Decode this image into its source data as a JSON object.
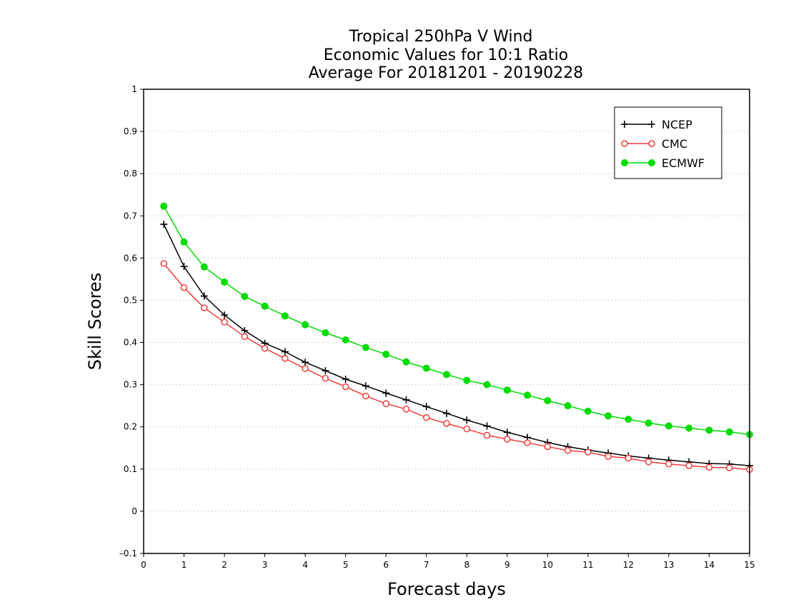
{
  "chart_data": {
    "type": "line",
    "title": [
      "Tropical 250hPa V Wind",
      "Economic Values for 10:1 Ratio",
      "Average For 20181201 - 20190228"
    ],
    "xlabel": "Forecast days",
    "ylabel": "Skill Scores",
    "xlim": [
      0,
      15
    ],
    "ylim": [
      -0.1,
      1
    ],
    "xticks": [
      0,
      1,
      2,
      3,
      4,
      5,
      6,
      7,
      8,
      9,
      10,
      11,
      12,
      13,
      14,
      15
    ],
    "yticks": [
      -0.1,
      0,
      0.1,
      0.2,
      0.3,
      0.4,
      0.5,
      0.6,
      0.7,
      0.8,
      0.9,
      1
    ],
    "ytick_labels": [
      "–0.1",
      "0",
      "0.1",
      "0.2",
      "0.3",
      "0.4",
      "0.5",
      "0.6",
      "0.7",
      "0.8",
      "0.9",
      "1"
    ],
    "grid": "horizontal dotted",
    "legend_position": "top-right",
    "x": [
      0.5,
      1,
      1.5,
      2,
      2.5,
      3,
      3.5,
      4,
      4.5,
      5,
      5.5,
      6,
      6.5,
      7,
      7.5,
      8,
      8.5,
      9,
      9.5,
      10,
      10.5,
      11,
      11.5,
      12,
      12.5,
      13,
      13.5,
      14,
      14.5,
      15
    ],
    "series": [
      {
        "name": "NCEP",
        "color": "#000000",
        "marker": "plus",
        "values": [
          0.68,
          0.58,
          0.51,
          0.465,
          0.428,
          0.398,
          0.378,
          0.353,
          0.333,
          0.313,
          0.297,
          0.28,
          0.264,
          0.248,
          0.232,
          0.216,
          0.202,
          0.187,
          0.175,
          0.163,
          0.153,
          0.145,
          0.138,
          0.131,
          0.126,
          0.121,
          0.117,
          0.113,
          0.112,
          0.108
        ]
      },
      {
        "name": "CMC",
        "color": "#f03c3c",
        "marker": "open-circle",
        "values": [
          0.587,
          0.53,
          0.482,
          0.448,
          0.414,
          0.386,
          0.362,
          0.338,
          0.315,
          0.295,
          0.273,
          0.255,
          0.242,
          0.222,
          0.208,
          0.195,
          0.18,
          0.171,
          0.162,
          0.153,
          0.144,
          0.14,
          0.13,
          0.126,
          0.117,
          0.112,
          0.108,
          0.104,
          0.103,
          0.099
        ]
      },
      {
        "name": "ECMWF",
        "color": "#00dc00",
        "marker": "filled-circle",
        "values": [
          0.723,
          0.638,
          0.579,
          0.543,
          0.509,
          0.486,
          0.463,
          0.442,
          0.423,
          0.406,
          0.388,
          0.372,
          0.354,
          0.339,
          0.324,
          0.31,
          0.3,
          0.287,
          0.275,
          0.262,
          0.25,
          0.237,
          0.226,
          0.218,
          0.209,
          0.202,
          0.197,
          0.192,
          0.188,
          0.182
        ]
      }
    ]
  }
}
